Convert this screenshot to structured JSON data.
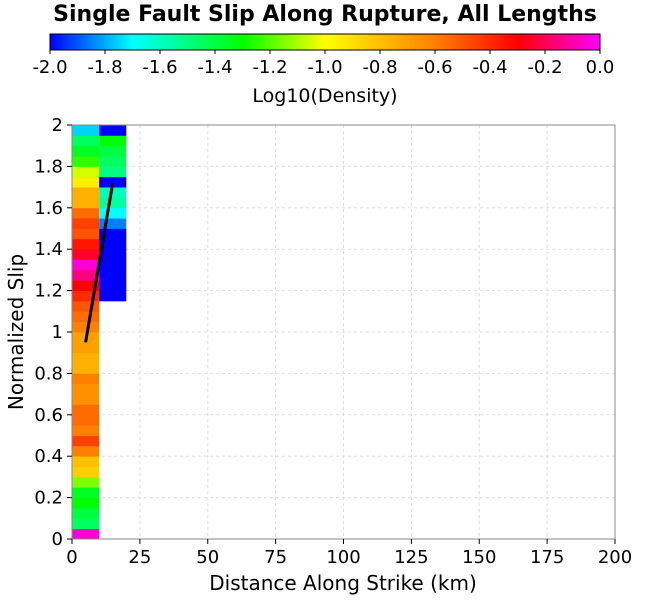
{
  "chart_data": {
    "type": "heatmap",
    "title": "Single Fault Slip Along Rupture, All Lengths",
    "xlabel": "Distance Along Strike (km)",
    "ylabel": "Normalized Slip",
    "xlim": [
      0,
      200
    ],
    "ylim": [
      0,
      2
    ],
    "x_ticks": [
      "0",
      "25",
      "50",
      "75",
      "100",
      "125",
      "150",
      "175",
      "200"
    ],
    "y_ticks": [
      "0",
      "0.2",
      "0.4",
      "0.6",
      "0.8",
      "1",
      "1.2",
      "1.4",
      "1.6",
      "1.8",
      "2"
    ],
    "grid": true,
    "colorbar": {
      "label": "Log10(Density)",
      "min": -2.0,
      "max": 0.0,
      "ticks": [
        "-2.0",
        "-1.8",
        "-1.6",
        "-1.4",
        "-1.2",
        "-1.0",
        "-0.8",
        "-0.6",
        "-0.4",
        "-0.2",
        "0.0"
      ],
      "stops": [
        {
          "v": -2.0,
          "color": "#0000ff"
        },
        {
          "v": -1.7,
          "color": "#00ffff"
        },
        {
          "v": -1.3,
          "color": "#00ff00"
        },
        {
          "v": -1.0,
          "color": "#ffff00"
        },
        {
          "v": -0.6,
          "color": "#ff8000"
        },
        {
          "v": -0.3,
          "color": "#ff0000"
        },
        {
          "v": 0.0,
          "color": "#ff00ff"
        }
      ]
    },
    "bin_height": 0.05,
    "columns": [
      {
        "x0": 0,
        "x1": 10,
        "values": [
          -0.05,
          -1.45,
          -1.4,
          -1.3,
          -1.35,
          -1.15,
          -0.85,
          -0.8,
          -0.6,
          -0.45,
          -0.6,
          -0.55,
          -0.55,
          -0.65,
          -0.65,
          -0.6,
          -0.75,
          -0.75,
          -0.7,
          -0.7,
          -0.6,
          -0.55,
          -0.5,
          -0.4,
          -0.3,
          -0.15,
          -0.05,
          -0.25,
          -0.35,
          -0.5,
          -0.45,
          -0.55,
          -0.75,
          -0.75,
          -0.95,
          -1.05,
          -1.25,
          -1.35,
          -1.45,
          -1.75
        ]
      },
      {
        "x0": 10,
        "x1": 20,
        "y_start": 1.15,
        "values": [
          -2.0,
          -2.0,
          -2.0,
          -2.0,
          -2.0,
          -2.0,
          -2.0,
          -1.85,
          -1.7,
          -1.55,
          -1.6,
          -2.0,
          -1.5,
          -1.45,
          -1.4,
          -1.3,
          -2.0
        ]
      }
    ],
    "mean_line": {
      "x": [
        5,
        15
      ],
      "y": [
        0.95,
        1.72
      ]
    }
  }
}
